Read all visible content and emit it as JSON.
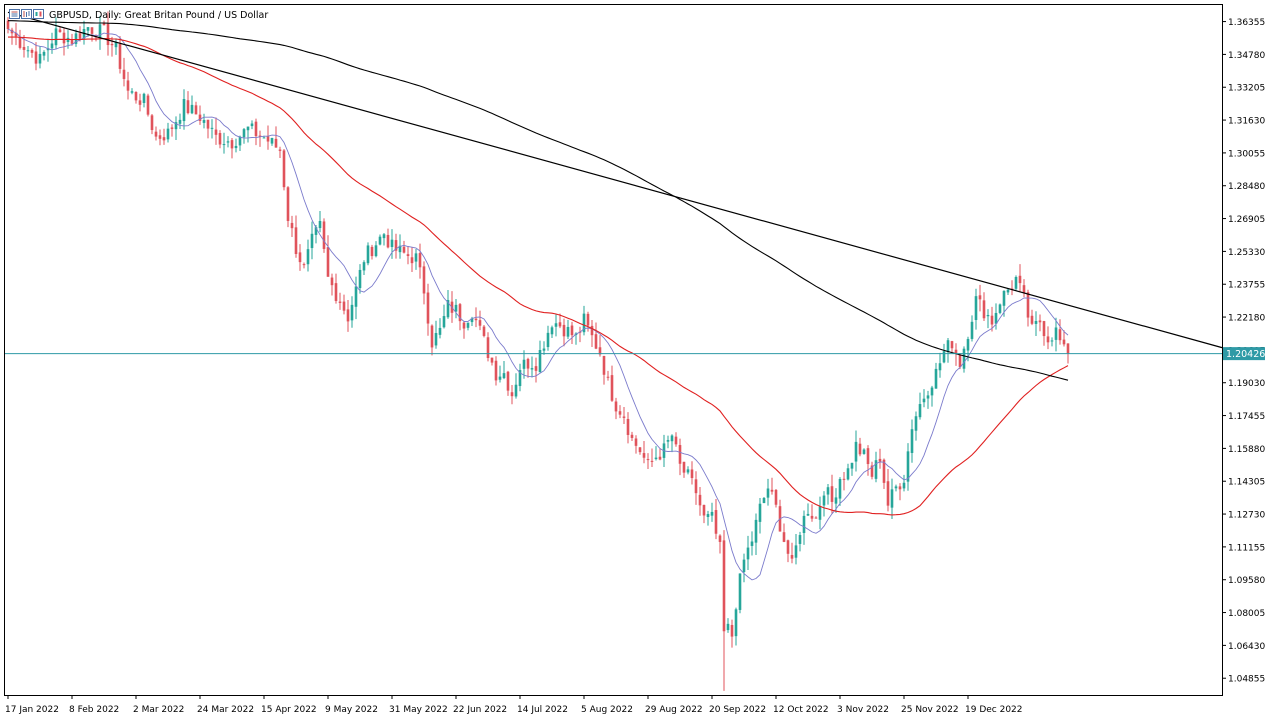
{
  "chart_title": "GBPUSD, Daily:  Great Britan Pound / US Dollar",
  "chart_data": {
    "type": "candlestick",
    "title": "GBPUSD, Daily:  Great Britan Pound / US Dollar",
    "symbol": "GBPUSD",
    "timeframe": "Daily",
    "ylim": [
      1.0405,
      1.3715
    ],
    "y_ticks": [
      "1.36355",
      "1.34780",
      "1.33205",
      "1.31630",
      "1.30055",
      "1.28480",
      "1.26905",
      "1.25330",
      "1.23755",
      "1.22180",
      "1.20605",
      "1.19030",
      "1.17455",
      "1.15880",
      "1.14305",
      "1.12730",
      "1.11155",
      "1.09580",
      "1.08005",
      "1.06430",
      "1.04855"
    ],
    "x_ticks": [
      {
        "index": 0,
        "label": "17 Jan 2022"
      },
      {
        "index": 16,
        "label": "8 Feb 2022"
      },
      {
        "index": 32,
        "label": "2 Mar 2022"
      },
      {
        "index": 48,
        "label": "24 Mar 2022"
      },
      {
        "index": 64,
        "label": "15 Apr 2022"
      },
      {
        "index": 80,
        "label": "9 May 2022"
      },
      {
        "index": 96,
        "label": "31 May 2022"
      },
      {
        "index": 112,
        "label": "22 Jun 2022"
      },
      {
        "index": 128,
        "label": "14 Jul 2022"
      },
      {
        "index": 144,
        "label": "5 Aug 2022"
      },
      {
        "index": 160,
        "label": "29 Aug 2022"
      },
      {
        "index": 176,
        "label": "20 Sep 2022"
      },
      {
        "index": 192,
        "label": "12 Oct 2022"
      },
      {
        "index": 208,
        "label": "3 Nov 2022"
      },
      {
        "index": 224,
        "label": "25 Nov 2022"
      },
      {
        "index": 240,
        "label": "19 Dec 2022"
      }
    ],
    "current_price": "1.20426",
    "close_anchors": [
      [
        0,
        1.36
      ],
      [
        4,
        1.352
      ],
      [
        8,
        1.345
      ],
      [
        12,
        1.358
      ],
      [
        16,
        1.355
      ],
      [
        20,
        1.361
      ],
      [
        24,
        1.358
      ],
      [
        27,
        1.35
      ],
      [
        30,
        1.33
      ],
      [
        34,
        1.325
      ],
      [
        37,
        1.308
      ],
      [
        40,
        1.31
      ],
      [
        44,
        1.323
      ],
      [
        48,
        1.318
      ],
      [
        52,
        1.308
      ],
      [
        56,
        1.306
      ],
      [
        60,
        1.312
      ],
      [
        64,
        1.308
      ],
      [
        68,
        1.302
      ],
      [
        70,
        1.27
      ],
      [
        72,
        1.255
      ],
      [
        74,
        1.245
      ],
      [
        76,
        1.258
      ],
      [
        78,
        1.265
      ],
      [
        80,
        1.24
      ],
      [
        83,
        1.23
      ],
      [
        85,
        1.222
      ],
      [
        87,
        1.235
      ],
      [
        89,
        1.25
      ],
      [
        91,
        1.255
      ],
      [
        94,
        1.262
      ],
      [
        96,
        1.255
      ],
      [
        99,
        1.252
      ],
      [
        102,
        1.25
      ],
      [
        104,
        1.235
      ],
      [
        106,
        1.21
      ],
      [
        108,
        1.215
      ],
      [
        110,
        1.227
      ],
      [
        112,
        1.225
      ],
      [
        114,
        1.22
      ],
      [
        116,
        1.225
      ],
      [
        118,
        1.215
      ],
      [
        120,
        1.205
      ],
      [
        122,
        1.195
      ],
      [
        124,
        1.195
      ],
      [
        126,
        1.185
      ],
      [
        128,
        1.198
      ],
      [
        130,
        1.2
      ],
      [
        132,
        1.2
      ],
      [
        134,
        1.21
      ],
      [
        136,
        1.22
      ],
      [
        138,
        1.218
      ],
      [
        140,
        1.215
      ],
      [
        142,
        1.212
      ],
      [
        144,
        1.22
      ],
      [
        146,
        1.212
      ],
      [
        148,
        1.205
      ],
      [
        150,
        1.19
      ],
      [
        152,
        1.18
      ],
      [
        154,
        1.175
      ],
      [
        156,
        1.163
      ],
      [
        158,
        1.158
      ],
      [
        160,
        1.15
      ],
      [
        162,
        1.155
      ],
      [
        164,
        1.158
      ],
      [
        166,
        1.165
      ],
      [
        168,
        1.15
      ],
      [
        170,
        1.145
      ],
      [
        172,
        1.138
      ],
      [
        174,
        1.125
      ],
      [
        176,
        1.125
      ],
      [
        178,
        1.11
      ],
      [
        179,
        1.07
      ],
      [
        180,
        1.072
      ],
      [
        181,
        1.069
      ],
      [
        182,
        1.085
      ],
      [
        184,
        1.105
      ],
      [
        186,
        1.115
      ],
      [
        188,
        1.13
      ],
      [
        190,
        1.14
      ],
      [
        192,
        1.13
      ],
      [
        194,
        1.115
      ],
      [
        196,
        1.102
      ],
      [
        198,
        1.12
      ],
      [
        200,
        1.13
      ],
      [
        202,
        1.125
      ],
      [
        204,
        1.14
      ],
      [
        206,
        1.133
      ],
      [
        208,
        1.145
      ],
      [
        210,
        1.148
      ],
      [
        212,
        1.16
      ],
      [
        214,
        1.155
      ],
      [
        216,
        1.146
      ],
      [
        218,
        1.155
      ],
      [
        220,
        1.132
      ],
      [
        222,
        1.14
      ],
      [
        224,
        1.145
      ],
      [
        226,
        1.17
      ],
      [
        228,
        1.18
      ],
      [
        230,
        1.188
      ],
      [
        232,
        1.195
      ],
      [
        234,
        1.205
      ],
      [
        236,
        1.21
      ],
      [
        238,
        1.2
      ],
      [
        240,
        1.215
      ],
      [
        242,
        1.23
      ],
      [
        244,
        1.225
      ],
      [
        246,
        1.22
      ],
      [
        248,
        1.23
      ],
      [
        250,
        1.235
      ],
      [
        252,
        1.24
      ],
      [
        254,
        1.23
      ],
      [
        256,
        1.215
      ],
      [
        258,
        1.22
      ],
      [
        260,
        1.212
      ],
      [
        262,
        1.215
      ],
      [
        264,
        1.205
      ],
      [
        265,
        1.2043
      ]
    ],
    "trendline": {
      "start": [
        0,
        1.368
      ],
      "end": [
        300,
        1.209
      ]
    },
    "series": [
      {
        "name": "",
        "color": "#7b7bcc",
        "period": 10
      },
      {
        "name": "",
        "color": "#e02020",
        "period": 50
      },
      {
        "name": "",
        "color": "#000000",
        "period": 200
      }
    ],
    "bull_color": "#26a69a",
    "bear_color": "#e0535b",
    "price_line_color": "#2e9aa6"
  }
}
